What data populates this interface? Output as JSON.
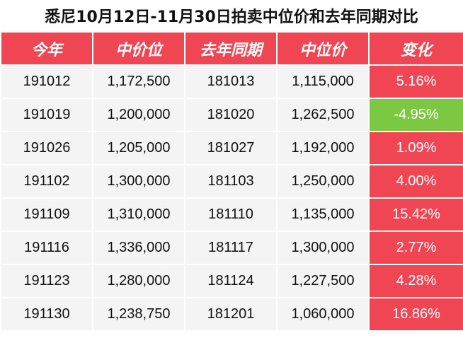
{
  "title": "悉尼10月12日-11月30日拍卖中位价和去年同期对比",
  "headers": [
    "今年",
    "中价位",
    "去年同期",
    "中位价",
    "变化"
  ],
  "colors": {
    "header_bg": "#f04553",
    "increase_bg": "#f04553",
    "decrease_bg": "#7dc843",
    "cell_bg": "#f4f4f4"
  },
  "rows": [
    {
      "this_year": "191012",
      "median": "1,172,500",
      "last_year": "181013",
      "last_median": "1,115,000",
      "change": "5.16%",
      "direction": "up"
    },
    {
      "this_year": "191019",
      "median": "1,200,000",
      "last_year": "181020",
      "last_median": "1,262,500",
      "change": "-4.95%",
      "direction": "down"
    },
    {
      "this_year": "191026",
      "median": "1,205,000",
      "last_year": "181027",
      "last_median": "1,192,000",
      "change": "1.09%",
      "direction": "up"
    },
    {
      "this_year": "191102",
      "median": "1,300,000",
      "last_year": "181103",
      "last_median": "1,250,000",
      "change": "4.00%",
      "direction": "up"
    },
    {
      "this_year": "191109",
      "median": "1,310,000",
      "last_year": "181110",
      "last_median": "1,135,000",
      "change": "15.42%",
      "direction": "up"
    },
    {
      "this_year": "191116",
      "median": "1,336,000",
      "last_year": "181117",
      "last_median": "1,300,000",
      "change": "2.77%",
      "direction": "up"
    },
    {
      "this_year": "191123",
      "median": "1,280,000",
      "last_year": "181124",
      "last_median": "1,227,500",
      "change": "4.28%",
      "direction": "up"
    },
    {
      "this_year": "191130",
      "median": "1,238,750",
      "last_year": "181201",
      "last_median": "1,060,000",
      "change": "16.86%",
      "direction": "up"
    }
  ]
}
